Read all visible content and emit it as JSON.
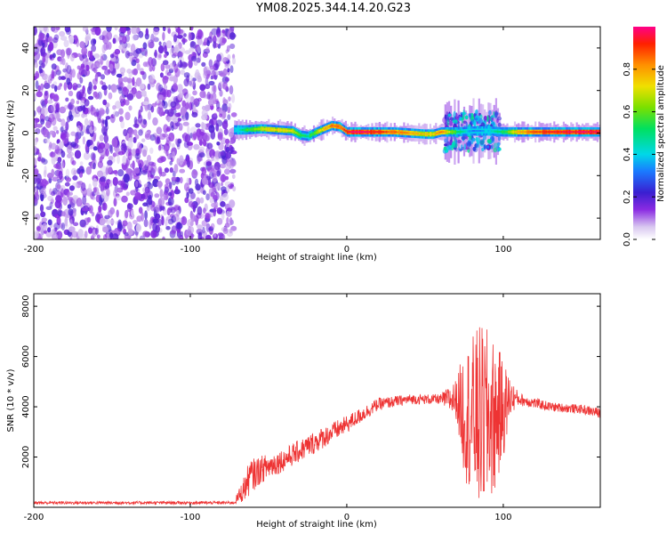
{
  "title": "YM08.2025.344.14.20.G23",
  "chart_data": [
    {
      "type": "heatmap",
      "title": "",
      "xlabel": "Height of straight line (km)",
      "ylabel": "Frequency (Hz)",
      "xlim": [
        -200,
        162
      ],
      "ylim": [
        -50,
        50
      ],
      "xticks": [
        -200,
        -100,
        0,
        100
      ],
      "yticks": [
        -40,
        -20,
        0,
        20,
        40
      ],
      "noise_region_x": [
        -200,
        -72
      ],
      "signal_line": {
        "x": [
          -72,
          -65,
          -55,
          -45,
          -35,
          -30,
          -25,
          -18,
          -10,
          -5,
          0,
          10,
          30,
          50,
          55,
          60,
          70,
          80,
          90,
          100,
          110,
          130,
          162
        ],
        "freq": [
          1.5,
          1.5,
          2,
          1.5,
          1,
          -1,
          -1.5,
          1,
          3.5,
          3,
          0.5,
          0.5,
          0.5,
          -0.5,
          -0.5,
          0.5,
          0.5,
          1,
          1,
          0.5,
          0.5,
          0.5,
          0.5
        ],
        "amplitude": [
          0.35,
          0.55,
          0.7,
          0.75,
          0.7,
          0.55,
          0.5,
          0.7,
          0.85,
          0.85,
          0.95,
          0.97,
          0.85,
          0.75,
          0.75,
          0.85,
          0.55,
          0.3,
          0.4,
          0.55,
          0.8,
          0.95,
          0.97
        ]
      },
      "colorbar": {
        "label": "Normalized spectral amplitude",
        "range": [
          0,
          1
        ],
        "ticks": [
          0.0,
          0.2,
          0.4,
          0.6,
          0.8
        ]
      }
    },
    {
      "type": "line",
      "title": "",
      "xlabel": "Height of straight line (km)",
      "ylabel": "SNR (10 * v/v)",
      "xlim": [
        -200,
        162
      ],
      "ylim": [
        0,
        8500
      ],
      "xticks": [
        -200,
        -100,
        0,
        100
      ],
      "yticks": [
        2000,
        4000,
        6000,
        8000
      ],
      "series": [
        {
          "name": "SNR",
          "color": "#ee3333",
          "envelope_x": [
            -200,
            -72,
            -66,
            -62,
            -55,
            -40,
            -20,
            0,
            20,
            40,
            60,
            70,
            75,
            80,
            85,
            90,
            95,
            100,
            105,
            110,
            130,
            150,
            162
          ],
          "envelope_mean": [
            180,
            180,
            700,
            1200,
            1500,
            1900,
            2600,
            3300,
            4100,
            4300,
            4300,
            4300,
            3800,
            3600,
            3500,
            3500,
            3600,
            3900,
            4400,
            4300,
            4000,
            3900,
            3750
          ],
          "envelope_amp": [
            60,
            60,
            500,
            700,
            550,
            450,
            450,
            350,
            250,
            200,
            200,
            800,
            2600,
            3200,
            3800,
            3600,
            3000,
            2000,
            700,
            250,
            180,
            180,
            200
          ]
        }
      ]
    }
  ]
}
